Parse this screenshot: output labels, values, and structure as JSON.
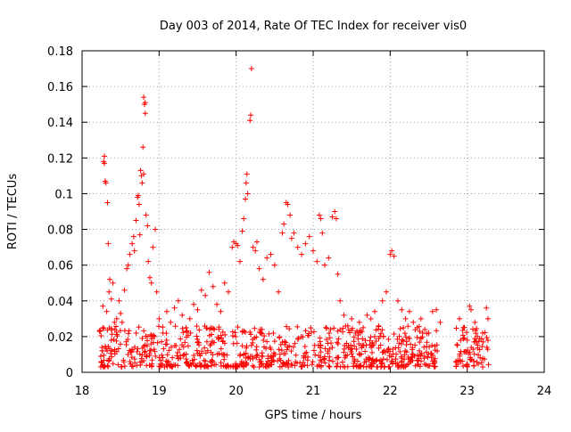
{
  "chart_data": {
    "type": "scatter",
    "title": "Day 003 of 2014, Rate Of TEC Index for receiver vis0",
    "xlabel": "GPS time / hours",
    "ylabel": "ROTI / TECUs",
    "xlim": [
      18,
      24
    ],
    "ylim": [
      0,
      0.18
    ],
    "x_ticks": [
      18,
      19,
      20,
      21,
      22,
      23,
      24
    ],
    "x_tick_labels": [
      "18",
      "19",
      "20",
      "21",
      "22",
      "23",
      "24"
    ],
    "y_ticks": [
      0,
      0.02,
      0.04,
      0.06,
      0.08,
      0.1,
      0.12,
      0.14,
      0.16,
      0.18
    ],
    "y_tick_labels": [
      "0",
      "0.02",
      "0.04",
      "0.06",
      "0.08",
      "0.1",
      "0.12",
      "0.14",
      "0.16",
      "0.18"
    ],
    "grid": true,
    "marker": "+",
    "colors": {
      "points": "#ff0000",
      "grid": "#a0a0a0",
      "axes": "#000000"
    },
    "series": [
      {
        "name": "vis0",
        "points": [
          [
            18.25,
            0.006
          ],
          [
            18.26,
            0.012
          ],
          [
            18.27,
            0.025
          ],
          [
            18.27,
            0.037
          ],
          [
            18.28,
            0.118
          ],
          [
            18.29,
            0.121
          ],
          [
            18.29,
            0.117
          ],
          [
            18.3,
            0.107
          ],
          [
            18.31,
            0.106
          ],
          [
            18.33,
            0.095
          ],
          [
            18.34,
            0.072
          ],
          [
            18.32,
            0.034
          ],
          [
            18.35,
            0.045
          ],
          [
            18.36,
            0.052
          ],
          [
            18.38,
            0.041
          ],
          [
            18.4,
            0.05
          ],
          [
            18.42,
            0.028
          ],
          [
            18.45,
            0.03
          ],
          [
            18.48,
            0.04
          ],
          [
            18.5,
            0.033
          ],
          [
            18.52,
            0.028
          ],
          [
            18.55,
            0.046
          ],
          [
            18.58,
            0.058
          ],
          [
            18.6,
            0.06
          ],
          [
            18.62,
            0.066
          ],
          [
            18.65,
            0.072
          ],
          [
            18.67,
            0.076
          ],
          [
            18.68,
            0.068
          ],
          [
            18.7,
            0.085
          ],
          [
            18.72,
            0.098
          ],
          [
            18.73,
            0.099
          ],
          [
            18.74,
            0.094
          ],
          [
            18.75,
            0.077
          ],
          [
            18.76,
            0.113
          ],
          [
            18.77,
            0.11
          ],
          [
            18.78,
            0.106
          ],
          [
            18.79,
            0.126
          ],
          [
            18.8,
            0.111
          ],
          [
            18.8,
            0.154
          ],
          [
            18.81,
            0.15
          ],
          [
            18.82,
            0.145
          ],
          [
            18.82,
            0.151
          ],
          [
            18.83,
            0.088
          ],
          [
            18.85,
            0.082
          ],
          [
            18.86,
            0.062
          ],
          [
            18.88,
            0.053
          ],
          [
            18.9,
            0.05
          ],
          [
            18.92,
            0.07
          ],
          [
            18.95,
            0.08
          ],
          [
            18.97,
            0.045
          ],
          [
            19.0,
            0.03
          ],
          [
            19.05,
            0.022
          ],
          [
            19.1,
            0.034
          ],
          [
            19.15,
            0.028
          ],
          [
            19.2,
            0.036
          ],
          [
            19.25,
            0.04
          ],
          [
            19.3,
            0.032
          ],
          [
            19.35,
            0.025
          ],
          [
            19.4,
            0.03
          ],
          [
            19.45,
            0.038
          ],
          [
            19.5,
            0.035
          ],
          [
            19.55,
            0.046
          ],
          [
            19.6,
            0.043
          ],
          [
            19.65,
            0.056
          ],
          [
            19.7,
            0.048
          ],
          [
            19.75,
            0.038
          ],
          [
            19.8,
            0.034
          ],
          [
            19.85,
            0.05
          ],
          [
            19.9,
            0.045
          ],
          [
            19.95,
            0.07
          ],
          [
            19.97,
            0.073
          ],
          [
            20.0,
            0.072
          ],
          [
            20.02,
            0.071
          ],
          [
            20.05,
            0.062
          ],
          [
            20.08,
            0.079
          ],
          [
            20.1,
            0.086
          ],
          [
            20.12,
            0.097
          ],
          [
            20.13,
            0.106
          ],
          [
            20.14,
            0.111
          ],
          [
            20.15,
            0.1
          ],
          [
            20.18,
            0.141
          ],
          [
            20.19,
            0.144
          ],
          [
            20.2,
            0.17
          ],
          [
            20.22,
            0.07
          ],
          [
            20.25,
            0.068
          ],
          [
            20.27,
            0.073
          ],
          [
            20.3,
            0.058
          ],
          [
            20.35,
            0.052
          ],
          [
            20.4,
            0.064
          ],
          [
            20.45,
            0.066
          ],
          [
            20.5,
            0.06
          ],
          [
            20.55,
            0.045
          ],
          [
            20.6,
            0.078
          ],
          [
            20.62,
            0.083
          ],
          [
            20.65,
            0.095
          ],
          [
            20.67,
            0.094
          ],
          [
            20.7,
            0.088
          ],
          [
            20.72,
            0.075
          ],
          [
            20.75,
            0.078
          ],
          [
            20.8,
            0.07
          ],
          [
            20.85,
            0.066
          ],
          [
            20.9,
            0.072
          ],
          [
            20.95,
            0.076
          ],
          [
            21.0,
            0.068
          ],
          [
            21.05,
            0.062
          ],
          [
            21.08,
            0.088
          ],
          [
            21.1,
            0.086
          ],
          [
            21.12,
            0.078
          ],
          [
            21.15,
            0.06
          ],
          [
            21.2,
            0.064
          ],
          [
            21.25,
            0.087
          ],
          [
            21.28,
            0.09
          ],
          [
            21.3,
            0.086
          ],
          [
            21.32,
            0.055
          ],
          [
            21.35,
            0.04
          ],
          [
            21.4,
            0.032
          ],
          [
            21.45,
            0.026
          ],
          [
            21.5,
            0.03
          ],
          [
            21.55,
            0.022
          ],
          [
            21.6,
            0.028
          ],
          [
            21.65,
            0.025
          ],
          [
            21.7,
            0.032
          ],
          [
            21.75,
            0.03
          ],
          [
            21.8,
            0.034
          ],
          [
            21.85,
            0.026
          ],
          [
            21.9,
            0.04
          ],
          [
            21.95,
            0.045
          ],
          [
            22.0,
            0.066
          ],
          [
            22.02,
            0.068
          ],
          [
            22.05,
            0.065
          ],
          [
            22.1,
            0.04
          ],
          [
            22.15,
            0.035
          ],
          [
            22.2,
            0.03
          ],
          [
            22.25,
            0.034
          ],
          [
            22.3,
            0.028
          ],
          [
            22.35,
            0.025
          ],
          [
            22.4,
            0.03
          ],
          [
            22.45,
            0.024
          ],
          [
            22.5,
            0.022
          ],
          [
            22.55,
            0.034
          ],
          [
            22.6,
            0.035
          ],
          [
            22.65,
            0.028
          ],
          [
            22.9,
            0.03
          ],
          [
            22.95,
            0.025
          ],
          [
            23.0,
            0.018
          ],
          [
            23.03,
            0.037
          ],
          [
            23.05,
            0.035
          ],
          [
            23.1,
            0.028
          ],
          [
            23.2,
            0.022
          ],
          [
            23.25,
            0.036
          ],
          [
            23.27,
            0.03
          ]
        ],
        "background_band": {
          "x_start": 18.22,
          "x_end": 23.28,
          "y_min": 0.003,
          "y_max": 0.026
        }
      }
    ]
  }
}
